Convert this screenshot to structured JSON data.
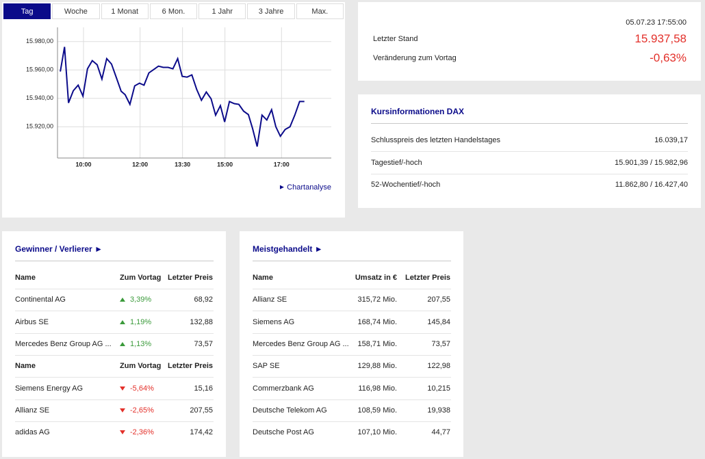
{
  "tabs": [
    "Tag",
    "Woche",
    "1 Monat",
    "6 Mon.",
    "1 Jahr",
    "3 Jahre",
    "Max."
  ],
  "chart_data": {
    "type": "line",
    "color": "#0b0b8a",
    "grid": true,
    "xlim": [
      9.08,
      18.76
    ],
    "ylim": [
      15898,
      15990
    ],
    "xticks": [
      {
        "value": 10,
        "label": "10:00"
      },
      {
        "value": 12,
        "label": "12:00"
      },
      {
        "value": 13.5,
        "label": "13:30"
      },
      {
        "value": 15,
        "label": "15:00"
      },
      {
        "value": 17,
        "label": "17:00"
      }
    ],
    "yticks": [
      {
        "value": 15920,
        "label": "15.920,00"
      },
      {
        "value": 15940,
        "label": "15.940,00"
      },
      {
        "value": 15960,
        "label": "15.960,00"
      },
      {
        "value": 15980,
        "label": "15.980,00"
      }
    ],
    "x": [
      9.18,
      9.33,
      9.47,
      9.64,
      9.81,
      9.98,
      10.14,
      10.31,
      10.48,
      10.65,
      10.82,
      10.99,
      11.16,
      11.33,
      11.47,
      11.64,
      11.81,
      11.98,
      12.14,
      12.31,
      12.48,
      12.65,
      12.82,
      12.99,
      13.16,
      13.33,
      13.49,
      13.66,
      13.83,
      14.0,
      14.17,
      14.34,
      14.51,
      14.67,
      14.84,
      14.99,
      15.16,
      15.33,
      15.49,
      15.66,
      15.83,
      15.98,
      16.14,
      16.31,
      16.48,
      16.65,
      16.8,
      16.96,
      17.13,
      17.3,
      17.47,
      17.64,
      17.81
    ],
    "values": [
      15958.9,
      15976.2,
      15936.8,
      15945.4,
      15949.3,
      15941.6,
      15960.8,
      15966.6,
      15963.7,
      15953.6,
      15968,
      15964.2,
      15954.6,
      15945,
      15942.6,
      15935.8,
      15948.8,
      15950.7,
      15949.3,
      15957.9,
      15960.3,
      15962.7,
      15961.8,
      15961.8,
      15960.8,
      15968,
      15955.5,
      15955,
      15956.5,
      15946.4,
      15938.7,
      15944.5,
      15939.7,
      15928.2,
      15934.9,
      15923.4,
      15937.8,
      15936.3,
      15935.8,
      15931,
      15928.6,
      15918.6,
      15906.1,
      15928.2,
      15924.8,
      15932,
      15920,
      15913.3,
      15918.1,
      15920,
      15928.2,
      15937.8,
      15937.8
    ]
  },
  "chart_link": "Chartanalyse",
  "quote": {
    "timestamp": "05.07.23 17:55:00",
    "last_label": "Letzter Stand",
    "last_value": "15.937,58",
    "change_label": "Veränderung zum Vortag",
    "change_value": "-0,63%"
  },
  "info": {
    "title": "Kursinformationen DAX",
    "rows": [
      [
        "Schlusspreis des letzten Handelstages",
        "16.039,17"
      ],
      [
        "Tagestief/-hoch",
        "15.901,39 / 15.982,96"
      ],
      [
        "52-Wochentief/-hoch",
        "11.862,80 / 16.427,40"
      ]
    ]
  },
  "movers": {
    "title": "Gewinner / Verlierer",
    "gainers": {
      "header": [
        "Name",
        "Zum Vortag",
        "Letzter Preis"
      ],
      "rows": [
        [
          "Continental AG",
          "3,39%",
          "68,92"
        ],
        [
          "Airbus SE",
          "1,19%",
          "132,88"
        ],
        [
          "Mercedes Benz Group AG ...",
          "1,13%",
          "73,57"
        ]
      ]
    },
    "losers": {
      "header": [
        "Name",
        "Zum Vortag",
        "Letzter Preis"
      ],
      "rows": [
        [
          "Siemens Energy AG",
          "-5,64%",
          "15,16"
        ],
        [
          "Allianz SE",
          "-2,65%",
          "207,55"
        ],
        [
          "adidas AG",
          "-2,36%",
          "174,42"
        ]
      ]
    }
  },
  "most_traded": {
    "title": "Meistgehandelt",
    "header": [
      "Name",
      "Umsatz in €",
      "Letzter Preis"
    ],
    "rows": [
      [
        "Allianz SE",
        "315,72 Mio.",
        "207,55"
      ],
      [
        "Siemens AG",
        "168,74 Mio.",
        "145,84"
      ],
      [
        "Mercedes Benz Group AG ...",
        "158,71 Mio.",
        "73,57"
      ],
      [
        "SAP SE",
        "129,88 Mio.",
        "122,98"
      ],
      [
        "Commerzbank AG",
        "116,98 Mio.",
        "10,215"
      ],
      [
        "Deutsche Telekom AG",
        "108,59 Mio.",
        "19,938"
      ],
      [
        "Deutsche Post AG",
        "107,10 Mio.",
        "44,77"
      ]
    ]
  }
}
